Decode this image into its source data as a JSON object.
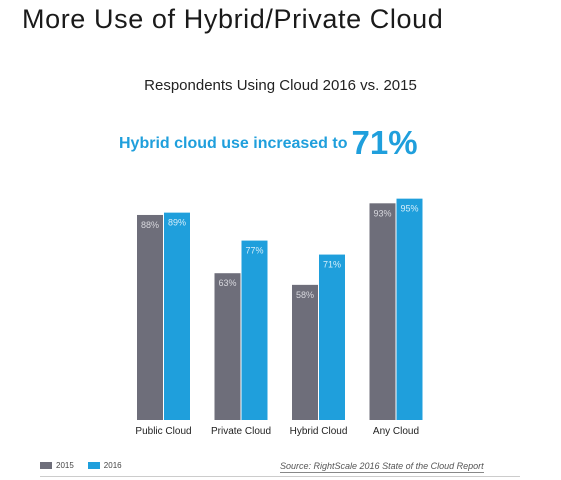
{
  "page": {
    "title": "More Use of Hybrid/Private Cloud",
    "subtitle": "Respondents Using Cloud 2016 vs. 2015",
    "highlight_text": "Hybrid cloud use increased to",
    "highlight_value": "71%",
    "source": "Source: RightScale 2016 State of the Cloud Report"
  },
  "colors": {
    "series_2015": "#6e6e7a",
    "series_2016": "#1f9fdc",
    "highlight": "#1f9fdc"
  },
  "chart_data": {
    "type": "bar",
    "title": "Respondents Using Cloud 2016 vs. 2015",
    "xlabel": "",
    "ylabel": "",
    "categories": [
      "Public Cloud",
      "Private Cloud",
      "Hybrid Cloud",
      "Any Cloud"
    ],
    "series": [
      {
        "name": "2015",
        "values": [
          88,
          63,
          58,
          93
        ],
        "labels": [
          "88%",
          "63%",
          "58%",
          "93%"
        ]
      },
      {
        "name": "2016",
        "values": [
          89,
          77,
          71,
          95
        ],
        "labels": [
          "89%",
          "77%",
          "71%",
          "95%"
        ]
      }
    ],
    "ylim": [
      0,
      100
    ],
    "grid": false,
    "legend_position": "bottom-left"
  }
}
